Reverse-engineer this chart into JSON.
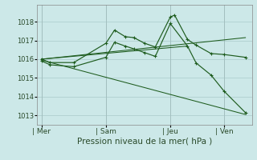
{
  "bg_color": "#cce8e8",
  "line_color": "#1e5c1e",
  "grid_color": "#b0d0d0",
  "xlabel": "Pression niveau de la mer( hPa )",
  "ylim": [
    1012.5,
    1018.9
  ],
  "yticks": [
    1013,
    1014,
    1015,
    1016,
    1017,
    1018
  ],
  "xlim": [
    -0.2,
    9.8
  ],
  "day_labels": [
    "| Mer",
    "| Sam",
    "| Jeu",
    "| Ven"
  ],
  "day_positions": [
    0,
    3,
    6,
    8.5
  ],
  "series1_x": [
    0.0,
    0.4,
    1.5,
    3.0,
    3.4,
    3.9,
    4.3,
    4.8,
    5.3,
    6.0,
    6.2,
    6.8,
    7.2,
    7.9,
    8.5,
    9.5
  ],
  "series1_y": [
    1016.0,
    1015.82,
    1015.82,
    1016.85,
    1017.55,
    1017.2,
    1017.15,
    1016.85,
    1016.65,
    1018.25,
    1018.35,
    1017.05,
    1016.75,
    1016.3,
    1016.25,
    1016.1
  ],
  "series2_x": [
    0.0,
    0.4,
    1.5,
    3.0,
    3.4,
    3.9,
    4.3,
    4.8,
    5.3,
    6.0,
    6.8,
    7.2,
    7.9,
    8.5,
    9.5
  ],
  "series2_y": [
    1015.9,
    1015.7,
    1015.6,
    1016.1,
    1016.9,
    1016.7,
    1016.55,
    1016.35,
    1016.15,
    1017.9,
    1016.7,
    1015.8,
    1015.15,
    1014.3,
    1013.15
  ],
  "trend1_x": [
    0.0,
    9.5
  ],
  "trend1_y": [
    1016.0,
    1017.15
  ],
  "trend2_x": [
    0.0,
    9.5
  ],
  "trend2_y": [
    1015.95,
    1013.05
  ],
  "trend3_x": [
    0.0,
    6.8
  ],
  "trend3_y": [
    1016.0,
    1016.7
  ]
}
